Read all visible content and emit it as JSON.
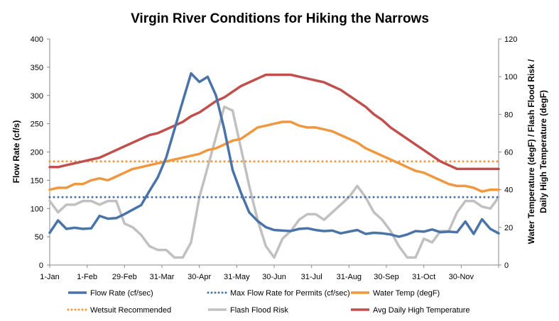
{
  "chart_data": {
    "type": "line",
    "title": "Virgin River Conditions for Hiking the Narrows",
    "ylabel_left": "Flow Rate (cf/s)",
    "ylabel_right": "Water Temperature (degF) / Flash Flood Risk / Daily High Temperature (degF)",
    "ylabel_right_lines": [
      "Water Temperature (degF) / Flash Flood Risk /",
      "Daily High Temperature (degF)"
    ],
    "ylim_left": [
      0,
      400
    ],
    "ylim_right": [
      0,
      120
    ],
    "yticks_left": [
      "0",
      "50",
      "100",
      "150",
      "200",
      "250",
      "300",
      "350",
      "400"
    ],
    "yticks_right": [
      "0",
      "20",
      "40",
      "60",
      "80",
      "100",
      "120"
    ],
    "x_tick_labels": [
      "1-Jan",
      "1-Feb",
      "29-Feb",
      "31-Mar",
      "30-Apr",
      "31-May",
      "30-Jun",
      "31-Jul",
      "31-Aug",
      "30-Sep",
      "31-Oct",
      "30-Nov"
    ],
    "grid": false,
    "legend_position": "bottom",
    "series": [
      {
        "name": "Flow Rate (cf/sec)",
        "axis": "left",
        "color": "#4a73a8",
        "style": "solid",
        "values": [
          57,
          79,
          64,
          66,
          64,
          65,
          87,
          82,
          83,
          90,
          98,
          106,
          131,
          155,
          190,
          240,
          290,
          339,
          324,
          333,
          300,
          240,
          168,
          128,
          93,
          78,
          67,
          62,
          61,
          60,
          64,
          65,
          62,
          60,
          61,
          56,
          59,
          62,
          55,
          57,
          56,
          54,
          50,
          54,
          60,
          59,
          63,
          58,
          59,
          58,
          77,
          55,
          81,
          64,
          56
        ]
      },
      {
        "name": "Max Flow Rate for Permits (cf/sec)",
        "axis": "left",
        "color": "#4a73a8",
        "style": "dotted",
        "values": [
          120,
          120
        ]
      },
      {
        "name": "Water Temp (degF)",
        "axis": "right",
        "color": "#f0973f",
        "style": "solid",
        "values": [
          40,
          41,
          41,
          43,
          43,
          45,
          46,
          45,
          47,
          49,
          51,
          52,
          53,
          54,
          55,
          56,
          57,
          58,
          59,
          61,
          62,
          64,
          66,
          67,
          70,
          73,
          74,
          75,
          76,
          76,
          74,
          73,
          73,
          72,
          71,
          69,
          67,
          65,
          62,
          60,
          58,
          56,
          54,
          52,
          50,
          49,
          47,
          45,
          43,
          42,
          42,
          41,
          39,
          40,
          40
        ]
      },
      {
        "name": "Wetsuit Recommended",
        "axis": "right",
        "color": "#f0973f",
        "style": "dotted",
        "values": [
          55,
          55
        ]
      },
      {
        "name": "Flash Flood Risk",
        "axis": "right",
        "color": "#c0c0c0",
        "style": "solid",
        "values": [
          34,
          28,
          32,
          32,
          34,
          34,
          32,
          34,
          34,
          22,
          20,
          16,
          10,
          8,
          8,
          4,
          4,
          12,
          36,
          52,
          68,
          84,
          82,
          62,
          42,
          24,
          10,
          4,
          14,
          18,
          24,
          27,
          27,
          24,
          28,
          32,
          36,
          42,
          36,
          28,
          24,
          18,
          10,
          4,
          4,
          14,
          12,
          18,
          18,
          28,
          34,
          34,
          31,
          30,
          36
        ]
      },
      {
        "name": "Avg Daily High Temperature",
        "axis": "right",
        "color": "#c0504d",
        "style": "solid",
        "values": [
          52,
          52,
          53,
          54,
          55,
          56,
          57,
          59,
          61,
          63,
          65,
          67,
          69,
          70,
          72,
          74,
          76,
          79,
          81,
          84,
          87,
          89,
          92,
          95,
          97,
          99,
          101,
          101,
          101,
          101,
          100,
          99,
          98,
          97,
          95,
          93,
          90,
          87,
          84,
          80,
          77,
          73,
          70,
          67,
          64,
          61,
          58,
          55,
          53,
          51,
          51,
          51,
          51,
          51,
          51
        ]
      }
    ]
  }
}
